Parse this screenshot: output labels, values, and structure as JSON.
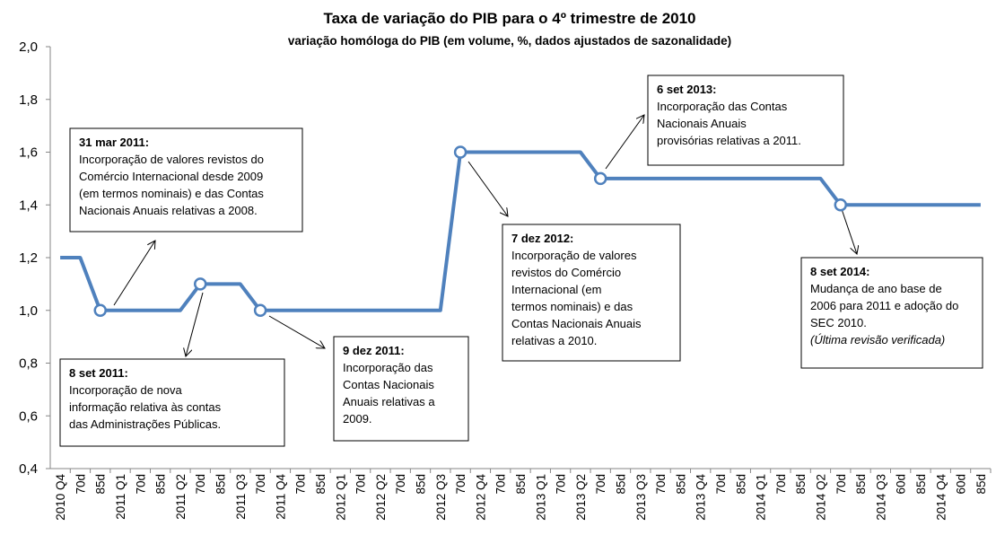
{
  "chart_data": {
    "type": "line",
    "title": "Taxa de variação do PIB para o 4º trimestre de 2010",
    "subtitle": "variação homóloga do PIB (em volume, %, dados ajustados de sazonalidade)",
    "categories": [
      "2010 Q4",
      "70d",
      "85d",
      "2011 Q1",
      "70d",
      "85d",
      "2011 Q2",
      "70d",
      "85d",
      "2011 Q3",
      "70d",
      "2011 Q4",
      "70d",
      "85d",
      "2012 Q1",
      "70d",
      "2012 Q2",
      "70d",
      "85d",
      "2012 Q3",
      "70d",
      "2012 Q4",
      "70d",
      "85d",
      "2013 Q1",
      "70d",
      "2013 Q2",
      "70d",
      "85d",
      "2013 Q3",
      "70d",
      "85d",
      "2013 Q4",
      "70d",
      "85d",
      "2014 Q1",
      "70d",
      "85d",
      "2014 Q2",
      "70d",
      "85d",
      "2014 Q3",
      "60d",
      "85d",
      "2014 Q4",
      "60d",
      "85d"
    ],
    "values": [
      1.2,
      1.2,
      1.0,
      1.0,
      1.0,
      1.0,
      1.0,
      1.1,
      1.1,
      1.1,
      1.0,
      1.0,
      1.0,
      1.0,
      1.0,
      1.0,
      1.0,
      1.0,
      1.0,
      1.0,
      1.6,
      1.6,
      1.6,
      1.6,
      1.6,
      1.6,
      1.6,
      1.5,
      1.5,
      1.5,
      1.5,
      1.5,
      1.5,
      1.5,
      1.5,
      1.5,
      1.5,
      1.5,
      1.5,
      1.4,
      1.4,
      1.4,
      1.4,
      1.4,
      1.4,
      1.4,
      1.4
    ],
    "color": "#4f81bd",
    "ylim": [
      0.4,
      2.0
    ],
    "yticks": [
      {
        "value": 0.4,
        "label": "0,4"
      },
      {
        "value": 0.6,
        "label": "0,6"
      },
      {
        "value": 0.8,
        "label": "0,8"
      },
      {
        "value": 1.0,
        "label": "1,0"
      },
      {
        "value": 1.2,
        "label": "1,2"
      },
      {
        "value": 1.4,
        "label": "1,4"
      },
      {
        "value": 1.6,
        "label": "1,6"
      },
      {
        "value": 1.8,
        "label": "1,8"
      },
      {
        "value": 2.0,
        "label": "2,0"
      }
    ],
    "grid": false,
    "annotations": [
      {
        "at": 2,
        "date": "31 mar 2011:",
        "lines": [
          "Incorporação de valores revistos do",
          "Comércio Internacional desde 2009",
          "(em termos nominais) e das Contas",
          "Nacionais Anuais relativas a 2008."
        ]
      },
      {
        "at": 7,
        "date": "8 set 2011:",
        "lines": [
          "Incorporação de nova",
          "informação relativa às contas",
          "das Administrações Públicas."
        ]
      },
      {
        "at": 10,
        "date": "9 dez 2011:",
        "lines": [
          "Incorporação das",
          "Contas Nacionais",
          "Anuais relativas a",
          "2009."
        ]
      },
      {
        "at": 20,
        "date": "7 dez 2012:",
        "lines": [
          "Incorporação de valores",
          "revistos do Comércio",
          "Internacional (em",
          "termos nominais) e das",
          "Contas Nacionais Anuais",
          "relativas a 2010."
        ]
      },
      {
        "at": 27,
        "date": "6 set 2013:",
        "lines": [
          "Incorporação das Contas",
          "Nacionais Anuais",
          "provisórias relativas a 2011."
        ]
      },
      {
        "at": 39,
        "date": "8 set 2014:",
        "lines": [
          "Mudança de ano base de",
          "2006 para 2011 e adoção  do",
          "SEC 2010."
        ],
        "note": "(Última revisão verificada)"
      }
    ]
  }
}
